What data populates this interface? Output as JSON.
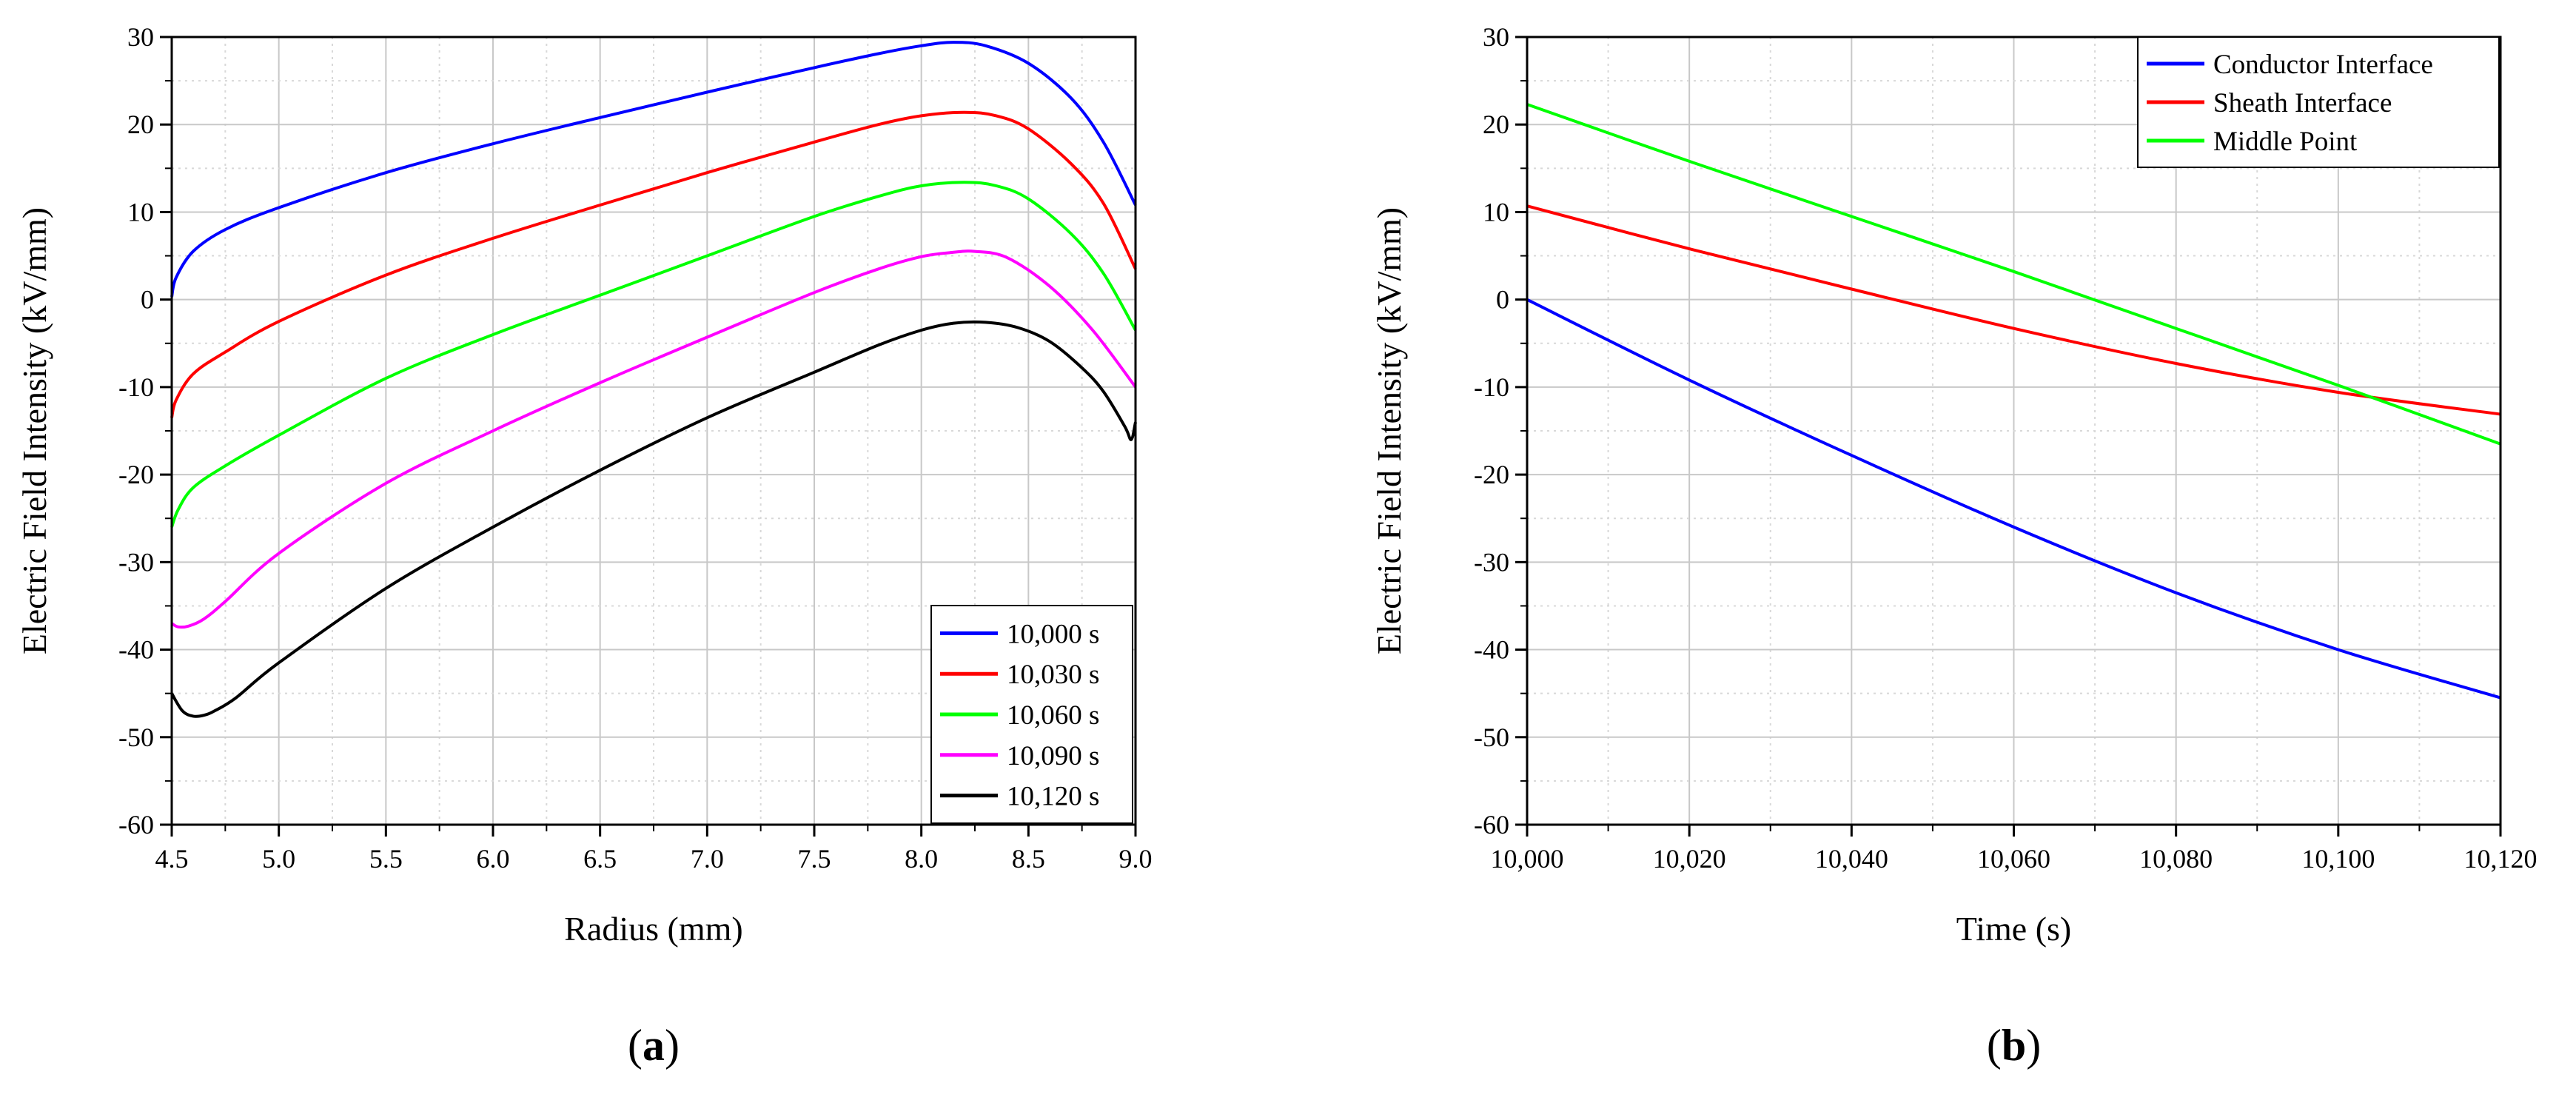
{
  "chart_data": [
    {
      "id": "a",
      "type": "line",
      "panel_label": "(a)",
      "panel_letter": "a",
      "xlabel": "Radius (mm)",
      "ylabel": "Electric Field Intensity (kV/mm)",
      "xlim": [
        4.5,
        9.0
      ],
      "ylim": [
        -60,
        30
      ],
      "xticks": [
        4.5,
        5.0,
        5.5,
        6.0,
        6.5,
        7.0,
        7.5,
        8.0,
        8.5,
        9.0
      ],
      "xtick_labels": [
        "4.5",
        "5.0",
        "5.5",
        "6.0",
        "6.5",
        "7.0",
        "7.5",
        "8.0",
        "8.5",
        "9.0"
      ],
      "yticks": [
        -60,
        -50,
        -40,
        -30,
        -20,
        -10,
        0,
        10,
        20,
        30
      ],
      "ytick_labels": [
        "-60",
        "-50",
        "-40",
        "-30",
        "-20",
        "-10",
        "0",
        "10",
        "20",
        "30"
      ],
      "grid": true,
      "legend_position": "bottom-right",
      "series": [
        {
          "name": "10,000 s",
          "color": "#0000ff",
          "x": [
            4.5,
            4.52,
            4.6,
            4.75,
            5.0,
            5.5,
            6.0,
            6.5,
            7.0,
            7.5,
            7.8,
            8.0,
            8.15,
            8.3,
            8.5,
            8.7,
            8.85,
            9.0
          ],
          "y": [
            0.3,
            2.5,
            5.5,
            8.0,
            10.5,
            14.5,
            17.8,
            20.8,
            23.7,
            26.5,
            28.1,
            29.0,
            29.4,
            29.0,
            27.0,
            23.0,
            18.0,
            10.8
          ]
        },
        {
          "name": "10,030 s",
          "color": "#ff0000",
          "x": [
            4.5,
            4.52,
            4.6,
            4.75,
            5.0,
            5.5,
            6.0,
            6.5,
            7.0,
            7.5,
            7.8,
            8.0,
            8.2,
            8.35,
            8.5,
            8.7,
            8.85,
            9.0
          ],
          "y": [
            -13.5,
            -11.5,
            -8.5,
            -6.0,
            -2.5,
            2.8,
            7.0,
            10.8,
            14.5,
            18.0,
            20.0,
            21.0,
            21.4,
            21.0,
            19.5,
            15.5,
            11.0,
            3.5
          ]
        },
        {
          "name": "10,060 s",
          "color": "#00ff00",
          "x": [
            4.5,
            4.53,
            4.6,
            4.75,
            5.0,
            5.5,
            6.0,
            6.5,
            7.0,
            7.5,
            7.8,
            8.0,
            8.2,
            8.35,
            8.5,
            8.7,
            8.85,
            9.0
          ],
          "y": [
            -26.0,
            -24.0,
            -21.5,
            -19.0,
            -15.5,
            -9.0,
            -4.0,
            0.5,
            5.0,
            9.5,
            11.8,
            13.0,
            13.4,
            13.0,
            11.5,
            7.5,
            3.0,
            -3.5
          ]
        },
        {
          "name": "10,090 s",
          "color": "#ff00ff",
          "x": [
            4.5,
            4.53,
            4.58,
            4.65,
            4.75,
            5.0,
            5.5,
            6.0,
            6.5,
            7.0,
            7.5,
            7.8,
            8.0,
            8.15,
            8.25,
            8.4,
            8.6,
            8.8,
            9.0
          ],
          "y": [
            -37.0,
            -37.4,
            -37.3,
            -36.5,
            -34.5,
            -29.0,
            -21.0,
            -15.0,
            -9.5,
            -4.3,
            0.8,
            3.5,
            4.9,
            5.4,
            5.5,
            4.8,
            1.5,
            -3.5,
            -10.0
          ]
        },
        {
          "name": "10,120 s",
          "color": "#000000",
          "x": [
            4.5,
            4.55,
            4.6,
            4.65,
            4.7,
            4.8,
            5.0,
            5.5,
            6.0,
            6.5,
            7.0,
            7.5,
            7.8,
            8.0,
            8.15,
            8.3,
            8.45,
            8.6,
            8.75,
            8.85,
            8.95,
            8.98,
            9.0
          ],
          "y": [
            -45.0,
            -47.0,
            -47.6,
            -47.5,
            -47.0,
            -45.5,
            -41.5,
            -33.0,
            -26.0,
            -19.5,
            -13.5,
            -8.3,
            -5.2,
            -3.5,
            -2.7,
            -2.6,
            -3.2,
            -4.8,
            -7.8,
            -10.5,
            -14.5,
            -16.0,
            -14.0
          ]
        }
      ]
    },
    {
      "id": "b",
      "type": "line",
      "panel_label": "(b)",
      "panel_letter": "b",
      "xlabel": "Time (s)",
      "ylabel": "Electric Field Intensity (kV/mm)",
      "xlim": [
        10000,
        10120
      ],
      "ylim": [
        -60,
        30
      ],
      "xticks": [
        10000,
        10020,
        10040,
        10060,
        10080,
        10100,
        10120
      ],
      "xtick_labels": [
        "10,000",
        "10,020",
        "10,040",
        "10,060",
        "10,080",
        "10,100",
        "10,120"
      ],
      "yticks": [
        -60,
        -50,
        -40,
        -30,
        -20,
        -10,
        0,
        10,
        20,
        30
      ],
      "ytick_labels": [
        "-60",
        "-50",
        "-40",
        "-30",
        "-20",
        "-10",
        "0",
        "10",
        "20",
        "30"
      ],
      "grid": true,
      "legend_position": "top-right",
      "series": [
        {
          "name": "Conductor Interface",
          "color": "#0000ff",
          "x": [
            10000,
            10020,
            10040,
            10060,
            10080,
            10100,
            10120
          ],
          "y": [
            0.0,
            -9.2,
            -17.8,
            -26.0,
            -33.5,
            -40.0,
            -45.5
          ]
        },
        {
          "name": "Sheath Interface",
          "color": "#ff0000",
          "x": [
            10000,
            10020,
            10040,
            10060,
            10080,
            10100,
            10120
          ],
          "y": [
            10.7,
            5.8,
            1.2,
            -3.3,
            -7.3,
            -10.6,
            -13.1
          ]
        },
        {
          "name": "Middle Point",
          "color": "#00ff00",
          "x": [
            10000,
            10020,
            10040,
            10060,
            10080,
            10100,
            10120
          ],
          "y": [
            22.3,
            15.8,
            9.5,
            3.2,
            -3.3,
            -9.8,
            -16.5
          ]
        }
      ]
    }
  ]
}
